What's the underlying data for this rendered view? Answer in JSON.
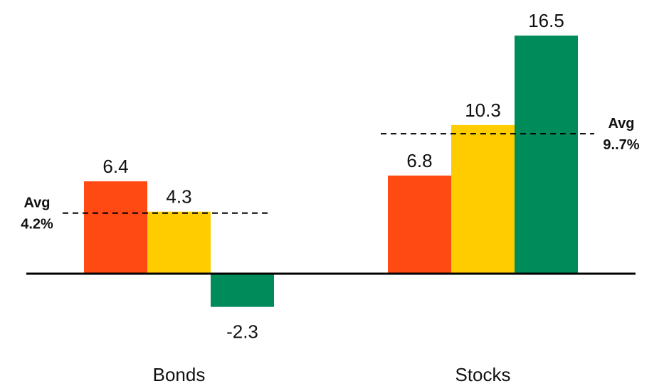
{
  "chart_data": {
    "type": "bar",
    "categories": [
      "Bonds",
      "Stocks"
    ],
    "series": [
      {
        "values": [
          6.4,
          6.8
        ],
        "color": "#FF4A14"
      },
      {
        "values": [
          4.3,
          10.3
        ],
        "color": "#FFCC00"
      },
      {
        "values": [
          -2.3,
          16.5
        ],
        "color": "#008C5A"
      }
    ],
    "value_labels": [
      [
        "6.4",
        "4.3",
        "-2.3"
      ],
      [
        "6.8",
        "10.3",
        "16.5"
      ]
    ],
    "averages": [
      {
        "category": "Bonds",
        "value": 4.2,
        "label_line1": "Avg",
        "label_line2": "4.2%"
      },
      {
        "category": "Stocks",
        "value": 9.7,
        "label_line1": "Avg",
        "label_line2": "9..7%"
      }
    ],
    "ylim": [
      -2.3,
      16.5
    ],
    "grid": false,
    "baseline_color": "#000000",
    "average_line_style": "dashed"
  }
}
